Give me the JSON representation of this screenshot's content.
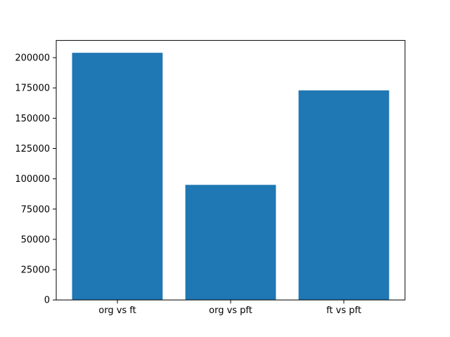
{
  "figure": {
    "background": "#ffffff",
    "spine_color": "#000000",
    "tick_color": "#000000",
    "tick_label_color": "#000000"
  },
  "chart_data": {
    "type": "bar",
    "title": "",
    "xlabel": "",
    "ylabel": "",
    "categories": [
      "org vs ft",
      "org vs pft",
      "ft vs pft"
    ],
    "values": [
      204000,
      95000,
      173000
    ],
    "bar_color": "#1f77b4",
    "bar_width": 0.8,
    "ylim": [
      0,
      214200
    ],
    "yticks": [
      0,
      25000,
      50000,
      75000,
      100000,
      125000,
      150000,
      175000,
      200000
    ],
    "ytick_labels": [
      "0",
      "25000",
      "50000",
      "75000",
      "100000",
      "125000",
      "150000",
      "175000",
      "200000"
    ],
    "grid": false,
    "legend": null
  }
}
